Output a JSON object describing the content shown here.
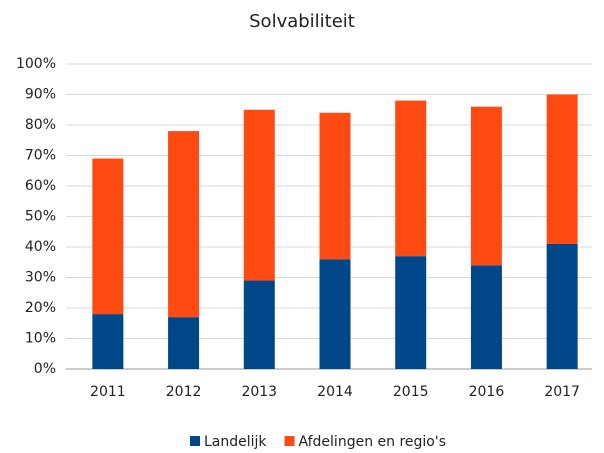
{
  "chart_data": {
    "type": "stacked_bar",
    "title": "Solvabiliteit",
    "categories": [
      "2011",
      "2012",
      "2013",
      "2014",
      "2015",
      "2016",
      "2017"
    ],
    "series": [
      {
        "name": "Landelijk",
        "color": "#00478a",
        "values": [
          18,
          17,
          29,
          36,
          37,
          34,
          41
        ]
      },
      {
        "name": "Afdelingen en regio's",
        "color": "#ff4a12",
        "values": [
          51,
          61,
          56,
          48,
          51,
          52,
          49
        ]
      }
    ],
    "ylim": [
      0,
      100
    ],
    "yticks": [
      {
        "value": 0,
        "label": "0%"
      },
      {
        "value": 10,
        "label": "10%"
      },
      {
        "value": 20,
        "label": "20%"
      },
      {
        "value": 30,
        "label": "30%"
      },
      {
        "value": 40,
        "label": "40%"
      },
      {
        "value": 50,
        "label": "50%"
      },
      {
        "value": 60,
        "label": "60%"
      },
      {
        "value": 70,
        "label": "70%"
      },
      {
        "value": 80,
        "label": "80%"
      },
      {
        "value": 90,
        "label": "90%"
      },
      {
        "value": 100,
        "label": "100%"
      }
    ],
    "grid": true,
    "legend": "bottom"
  }
}
